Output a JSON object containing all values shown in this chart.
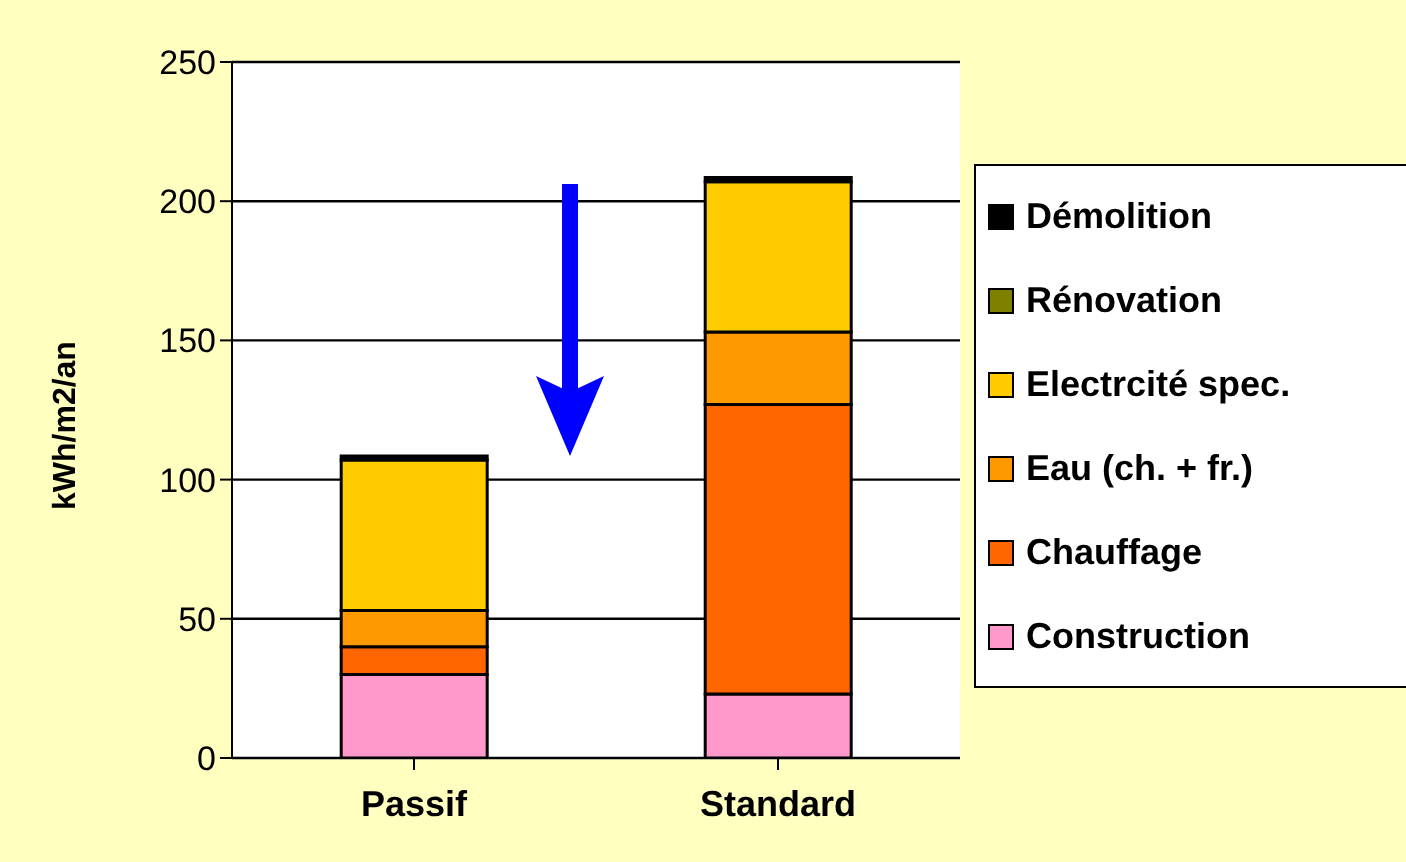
{
  "chart_data": {
    "type": "bar",
    "stacked": true,
    "categories": [
      "Passif",
      "Standard"
    ],
    "ylabel": "kWh/m2/an",
    "ylim": [
      0,
      250
    ],
    "yticks": [
      0,
      50,
      100,
      150,
      200,
      250
    ],
    "grid": "y",
    "legend": "right",
    "series": [
      {
        "name": "Construction",
        "color": "#ff99cc",
        "values": [
          30,
          23
        ]
      },
      {
        "name": "Chauffage",
        "color": "#ff6600",
        "values": [
          10,
          104
        ]
      },
      {
        "name": "Eau (ch. + fr.)",
        "color": "#ff9900",
        "values": [
          13,
          26
        ]
      },
      {
        "name": "Electrcité spec.",
        "color": "#ffcc00",
        "values": [
          54,
          54
        ]
      },
      {
        "name": "Rénovation",
        "color": "#808000",
        "values": [
          0,
          0
        ]
      },
      {
        "name": "Démolition",
        "color": "#000000",
        "values": [
          1.5,
          1.5
        ]
      }
    ]
  }
}
